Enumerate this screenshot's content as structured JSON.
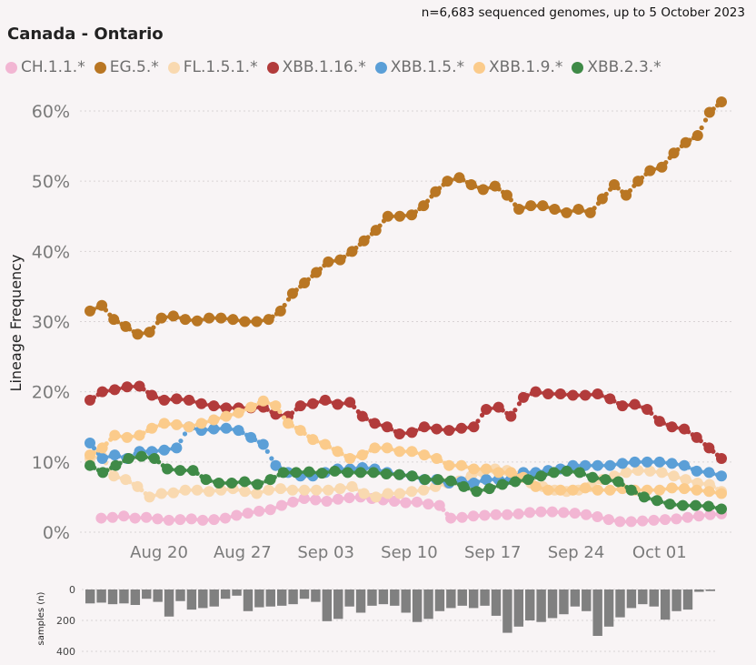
{
  "subtitle": "n=6,683 sequenced genomes, up to 5 October 2023",
  "title": "Canada - Ontario",
  "chart_data": {
    "type": "line",
    "title": "Canada - Ontario",
    "ylabel": "Lineage Frequency",
    "ylim": [
      0,
      62
    ],
    "y_ticks": [
      "0%",
      "10%",
      "20%",
      "30%",
      "40%",
      "50%",
      "60%"
    ],
    "y_tick_values": [
      0,
      10,
      20,
      30,
      40,
      50,
      60
    ],
    "x_tick_labels": [
      "Aug 20",
      "Aug 27",
      "Sep 03",
      "Sep 10",
      "Sep 17",
      "Sep 24",
      "Oct 01"
    ],
    "x_tick_days": [
      6,
      13,
      20,
      27,
      34,
      41,
      48
    ],
    "x_start": "Aug 14",
    "series": [
      {
        "name": "CH.1.1.*",
        "color": "#f2b6d3",
        "values": [
          null,
          2.0,
          2.1,
          2.3,
          2.0,
          2.1,
          1.9,
          1.7,
          1.8,
          1.9,
          1.7,
          1.8,
          2.0,
          2.4,
          2.7,
          3.0,
          3.2,
          3.8,
          4.3,
          4.8,
          4.6,
          4.4,
          4.7,
          4.9,
          5.0,
          4.8,
          4.6,
          4.4,
          4.2,
          4.3,
          4.0,
          3.8,
          2.0,
          2.1,
          2.3,
          2.4,
          2.5,
          2.5,
          2.6,
          2.8,
          2.9,
          2.9,
          2.8,
          2.7,
          2.5,
          2.2,
          1.8,
          1.5,
          1.5,
          1.6,
          1.7,
          1.8,
          1.9,
          2.1,
          2.3,
          2.5,
          2.6
        ]
      },
      {
        "name": "EG.5.*",
        "color": "#b97623",
        "values": [
          31.5,
          32.3,
          30.3,
          29.3,
          28.2,
          28.5,
          30.5,
          30.8,
          30.3,
          30.1,
          30.5,
          30.5,
          30.3,
          30.0,
          30.0,
          30.3,
          31.5,
          34.0,
          35.5,
          37.0,
          38.5,
          38.8,
          40.0,
          41.5,
          43.0,
          45.0,
          45.0,
          45.2,
          46.5,
          48.5,
          50.0,
          50.5,
          49.5,
          48.8,
          49.3,
          48.0,
          46.0,
          46.5,
          46.5,
          46.0,
          45.5,
          46.0,
          45.5,
          47.5,
          49.5,
          48.0,
          50.0,
          51.5,
          52.0,
          54.0,
          55.5,
          56.5,
          59.8,
          61.3
        ]
      },
      {
        "name": "FL.1.5.1.*",
        "color": "#f9d9b0",
        "values": [
          10.5,
          10.8,
          8.0,
          7.5,
          6.5,
          5.0,
          5.5,
          5.6,
          6.0,
          6.0,
          5.8,
          6.0,
          6.2,
          5.8,
          5.5,
          6.0,
          6.2,
          6.0,
          6.0,
          6.0,
          6.0,
          6.2,
          6.5,
          5.5,
          5.0,
          5.5,
          5.5,
          5.8,
          6.0,
          6.5,
          7.0,
          7.3,
          8.0,
          8.5,
          9.0,
          8.8,
          8.0,
          7.0,
          6.5,
          6.0,
          5.8,
          6.0,
          6.5,
          7.5,
          8.0,
          8.5,
          8.8,
          8.7,
          8.5,
          8.0,
          7.5,
          7.0,
          6.8,
          5.8
        ]
      },
      {
        "name": "XBB.1.16.*",
        "color": "#b23b3b",
        "values": [
          18.8,
          20.0,
          20.3,
          20.7,
          20.8,
          19.5,
          18.8,
          19.0,
          18.8,
          18.3,
          18.0,
          17.7,
          17.7,
          17.7,
          17.8,
          16.8,
          16.5,
          18.0,
          18.3,
          18.8,
          18.2,
          18.5,
          16.5,
          15.5,
          15.0,
          14.0,
          14.2,
          15.0,
          14.7,
          14.5,
          14.8,
          15.0,
          17.5,
          17.8,
          16.5,
          19.2,
          20.0,
          19.7,
          19.7,
          19.5,
          19.5,
          19.7,
          19.0,
          18.0,
          18.2,
          17.5,
          15.8,
          15.0,
          14.7,
          13.5,
          12.0,
          10.5
        ]
      },
      {
        "name": "XBB.1.5.*",
        "color": "#5b9fd7",
        "values": [
          12.7,
          10.5,
          11.0,
          10.5,
          11.5,
          11.5,
          11.7,
          12.0,
          15.0,
          14.5,
          14.7,
          14.8,
          14.5,
          13.5,
          12.5,
          9.5,
          8.5,
          8.0,
          8.0,
          8.5,
          9.0,
          9.0,
          9.2,
          9.0,
          8.5,
          8.2,
          8.0,
          7.5,
          7.5,
          7.0,
          7.2,
          7.0,
          7.5,
          7.5,
          7.5,
          8.5,
          8.5,
          8.8,
          9.0,
          9.5,
          9.5,
          9.5,
          9.5,
          9.8,
          10.0,
          10.0,
          10.0,
          9.8,
          9.5,
          8.7,
          8.5,
          8.0
        ]
      },
      {
        "name": "XBB.1.9.*",
        "color": "#fbcb8b",
        "values": [
          11.0,
          12.0,
          13.8,
          13.5,
          13.8,
          14.8,
          15.5,
          15.3,
          15.0,
          15.5,
          16.0,
          16.5,
          17.0,
          17.8,
          18.7,
          18.0,
          15.5,
          14.5,
          13.2,
          12.5,
          11.5,
          10.5,
          11.0,
          12.0,
          12.0,
          11.5,
          11.5,
          11.0,
          10.5,
          9.5,
          9.5,
          9.0,
          9.0,
          8.5,
          8.5,
          7.8,
          6.5,
          6.0,
          6.0,
          6.0,
          6.3,
          6.0,
          6.0,
          6.2,
          6.0,
          6.0,
          6.0,
          6.3,
          6.2,
          6.0,
          5.8,
          5.5
        ]
      },
      {
        "name": "XBB.2.3.*",
        "color": "#3f8a47",
        "values": [
          9.5,
          8.5,
          9.5,
          10.5,
          10.8,
          10.5,
          9.0,
          8.8,
          8.8,
          7.5,
          7.0,
          7.0,
          7.2,
          6.8,
          7.5,
          8.5,
          8.5,
          8.6,
          8.4,
          8.7,
          8.5,
          8.5,
          8.5,
          8.3,
          8.2,
          8.0,
          7.5,
          7.5,
          7.3,
          6.5,
          5.8,
          6.2,
          6.8,
          7.2,
          7.5,
          8.0,
          8.5,
          8.7,
          8.5,
          7.8,
          7.5,
          7.2,
          6.0,
          5.0,
          4.5,
          4.0,
          3.8,
          3.8,
          3.7,
          3.3
        ]
      }
    ],
    "samples": {
      "ylabel": "samples (n)",
      "ticks": [
        "0",
        "200",
        "400"
      ],
      "tick_values": [
        0,
        200,
        400
      ],
      "ylim": [
        0,
        400
      ],
      "values": [
        90,
        85,
        95,
        90,
        100,
        60,
        80,
        175,
        75,
        130,
        120,
        110,
        60,
        40,
        140,
        115,
        110,
        105,
        95,
        60,
        80,
        205,
        190,
        110,
        150,
        105,
        95,
        105,
        150,
        210,
        190,
        140,
        120,
        105,
        120,
        105,
        170,
        280,
        240,
        200,
        210,
        185,
        160,
        110,
        140,
        300,
        240,
        180,
        120,
        95,
        110,
        195,
        140,
        130,
        15,
        10
      ]
    }
  },
  "colors": {
    "background": "#f8f4f5",
    "grid": "#d9d3d5",
    "bar": "#808080"
  }
}
